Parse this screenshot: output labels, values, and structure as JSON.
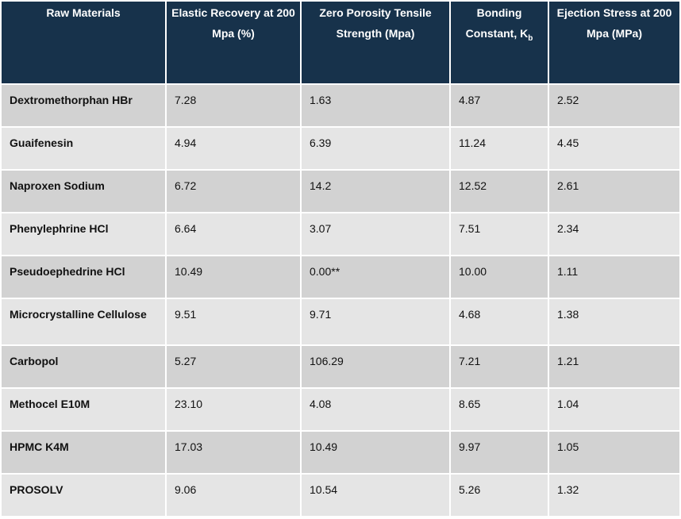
{
  "table": {
    "headers": [
      {
        "text": "Raw Materials"
      },
      {
        "text": "Elastic Recovery at 200 Mpa (%)"
      },
      {
        "text": "Zero Porosity Tensile Strength (Mpa)"
      },
      {
        "text": "Bonding Constant, K",
        "sub": "b"
      },
      {
        "text": "Ejection Stress at 200 Mpa (MPa)"
      }
    ],
    "rows": [
      [
        "Dextromethorphan HBr",
        "7.28",
        "1.63",
        "4.87",
        "2.52"
      ],
      [
        "Guaifenesin",
        "4.94",
        "6.39",
        "11.24",
        "4.45"
      ],
      [
        "Naproxen Sodium",
        "6.72",
        "14.2",
        "12.52",
        "2.61"
      ],
      [
        "Phenylephrine HCl",
        "6.64",
        "3.07",
        "7.51",
        "2.34"
      ],
      [
        "Pseudoephedrine HCl",
        "10.49",
        "0.00**",
        "10.00",
        "1.11"
      ],
      [
        "Microcrystalline Cellulose",
        "9.51",
        "9.71",
        "4.68",
        "1.38"
      ],
      [
        "Carbopol",
        "5.27",
        "106.29",
        "7.21",
        "1.21"
      ],
      [
        "Methocel E10M",
        "23.10",
        "4.08",
        "8.65",
        "1.04"
      ],
      [
        "HPMC K4M",
        "17.03",
        "10.49",
        "9.97",
        "1.05"
      ],
      [
        "PROSOLV",
        "9.06",
        "10.54",
        "5.26",
        "1.32"
      ]
    ]
  },
  "colors": {
    "header_bg": "#17324b",
    "row_dark": "#d2d2d2",
    "row_light": "#e5e5e5"
  }
}
